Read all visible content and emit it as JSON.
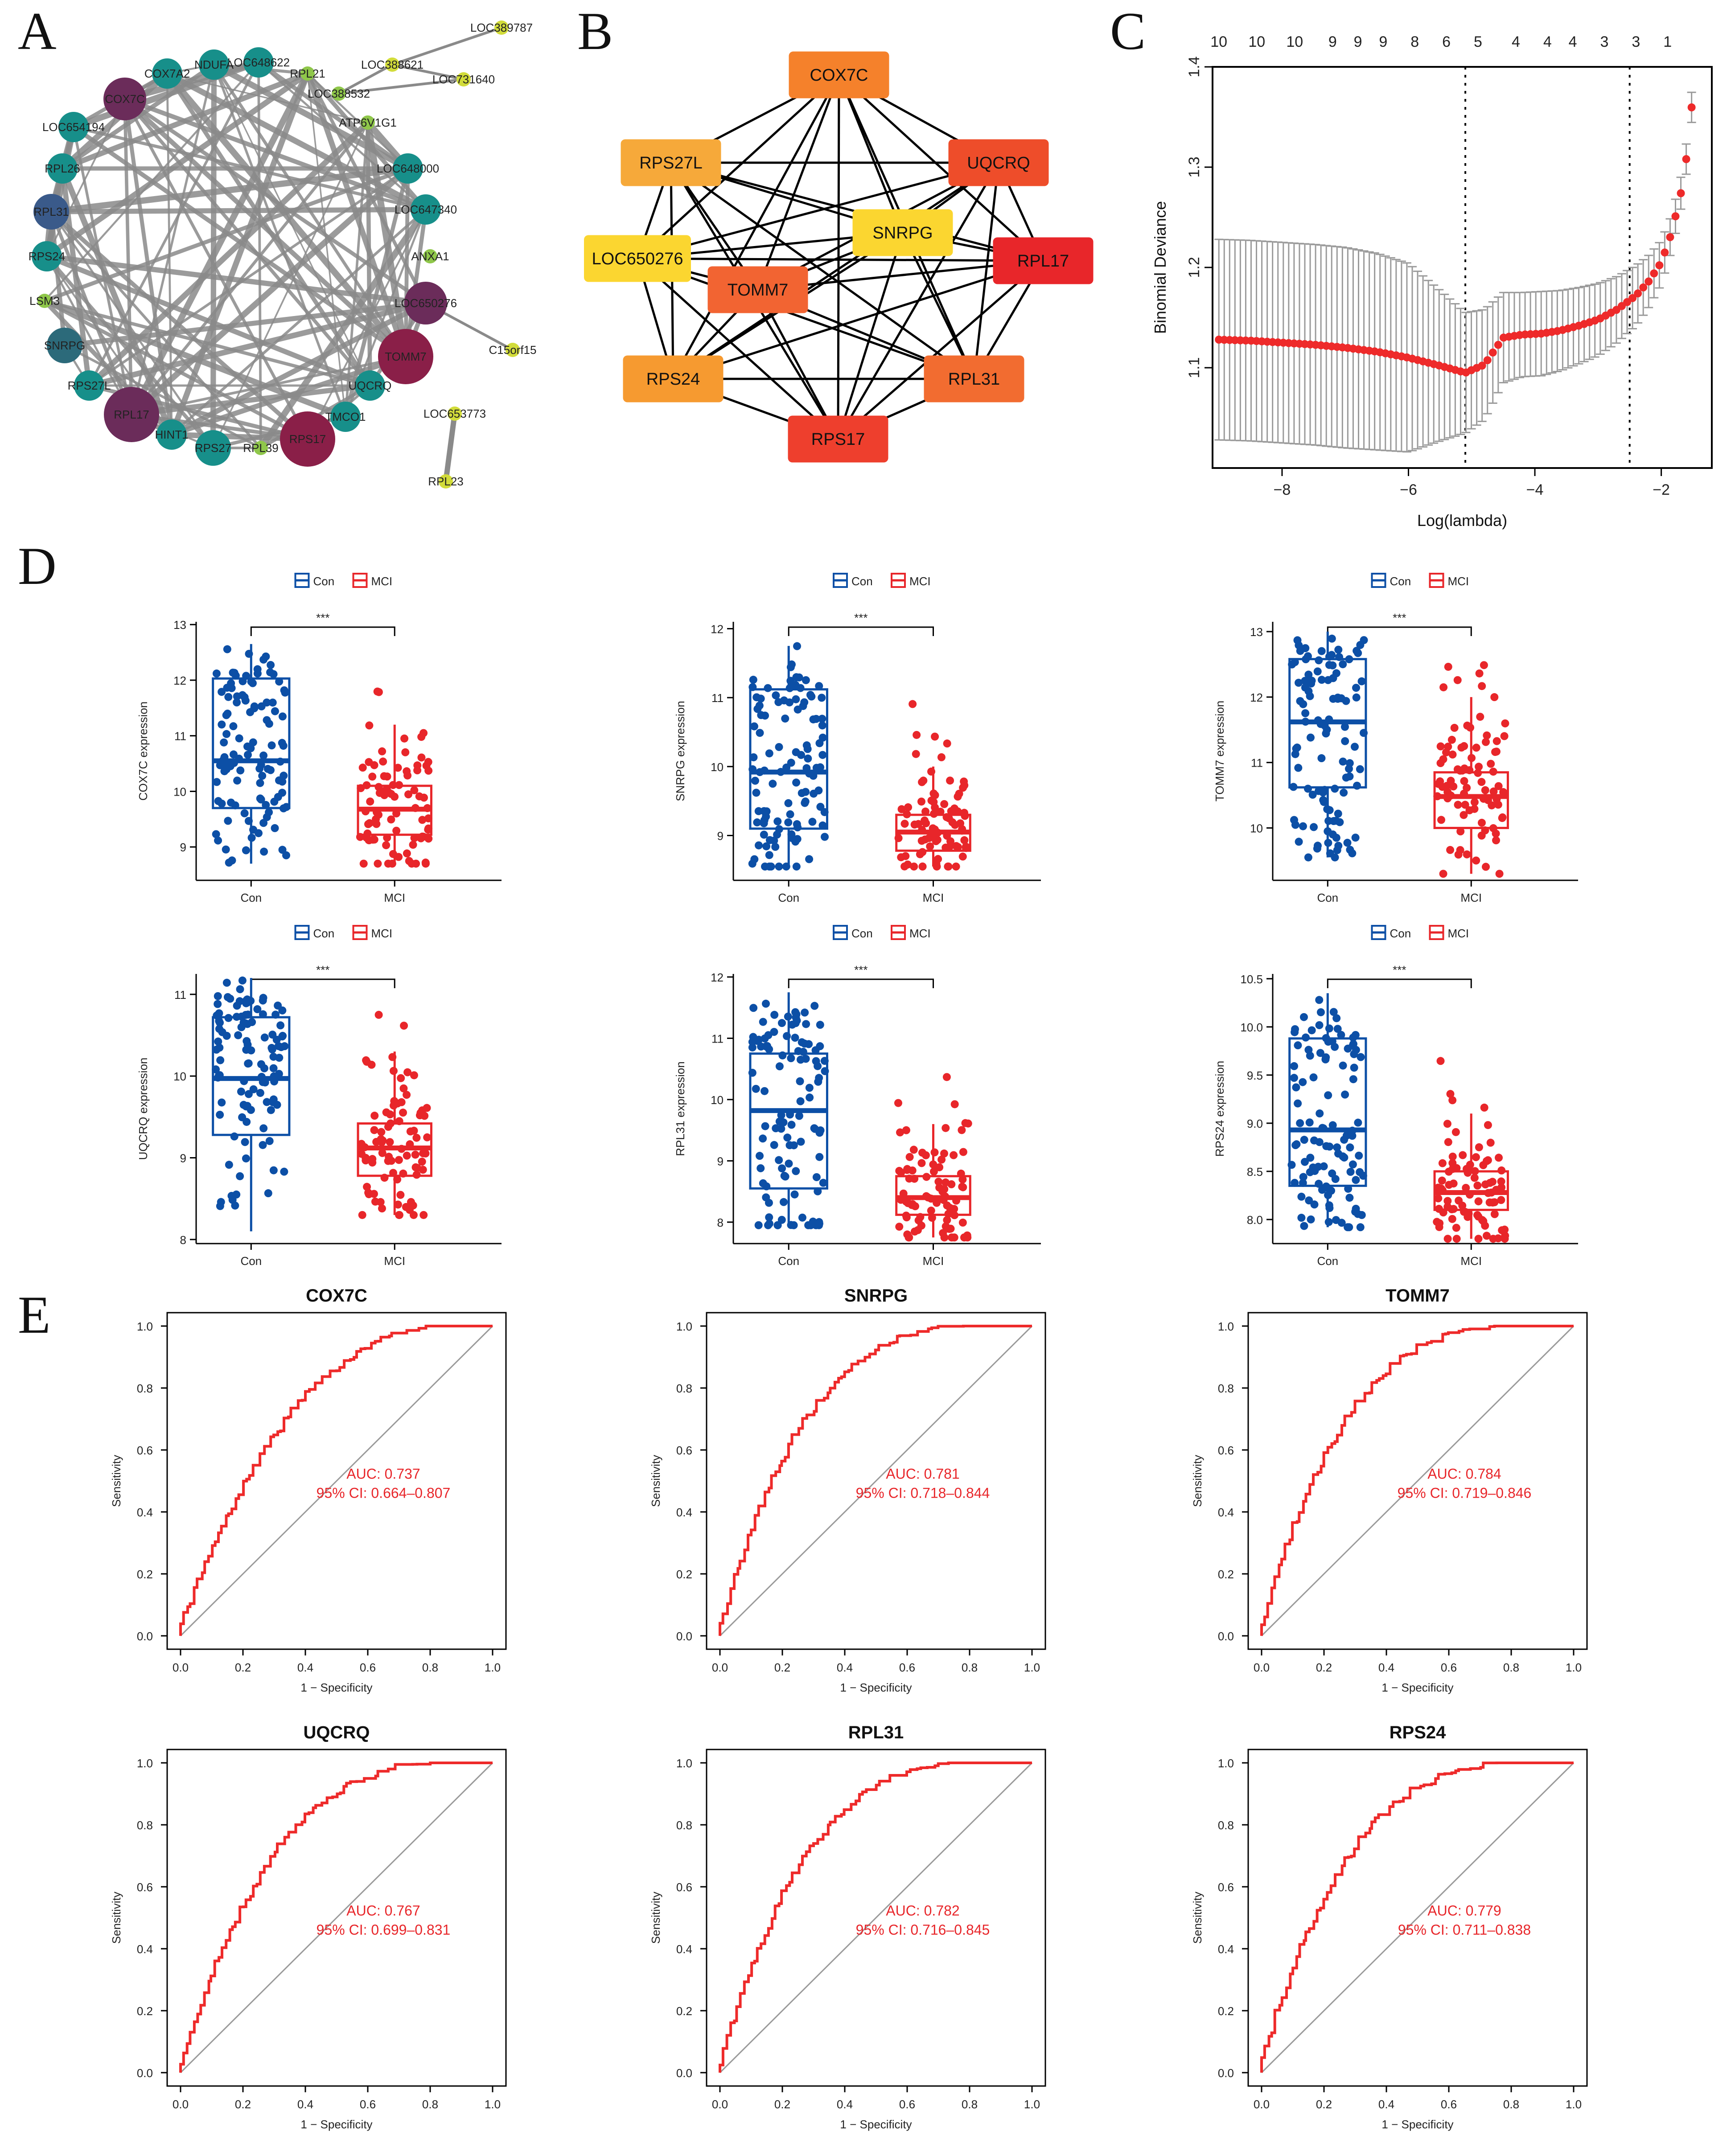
{
  "panel_letters": [
    "A",
    "B",
    "C",
    "D",
    "E"
  ],
  "colors": {
    "con": "#0c4fa6",
    "mci": "#e8262a",
    "roc": "#ee2a2a",
    "edge_gray": "#8a8a8a",
    "node_teal": "#178f8a",
    "node_purple": "#6b2c5a",
    "node_green": "#8fc74a",
    "node_yellow": "#d2dc3a"
  },
  "network_a": {
    "nodes": [
      {
        "id": "LOC388621",
        "label": "LOC388621",
        "color": "#d2dc3a",
        "size": 1
      },
      {
        "id": "LOC389787",
        "label": "LOC389787",
        "color": "#d2dc3a",
        "size": 1
      },
      {
        "id": "LOC731640",
        "label": "LOC731640",
        "color": "#d2dc3a",
        "size": 1
      },
      {
        "id": "LOC388532",
        "label": "LOC388532",
        "color": "#8fc74a",
        "size": 1
      },
      {
        "id": "RPL21",
        "label": "RPL21",
        "color": "#8fc74a",
        "size": 1
      },
      {
        "id": "LOC648622",
        "label": "LOC648622",
        "color": "#178f8a",
        "size": 2
      },
      {
        "id": "NDUFA",
        "label": "NDUFA",
        "color": "#178f8a",
        "size": 2
      },
      {
        "id": "COX7A2",
        "label": "COX7A2",
        "color": "#178f8a",
        "size": 2
      },
      {
        "id": "COX7C",
        "label": "COX7C",
        "color": "#6b2c5a",
        "size": 4
      },
      {
        "id": "ATP6V1G1",
        "label": "ATP6V1G1",
        "color": "#8fc74a",
        "size": 1
      },
      {
        "id": "LOC654194",
        "label": "LOC654194",
        "color": "#178f8a",
        "size": 2
      },
      {
        "id": "LOC648000",
        "label": "LOC648000",
        "color": "#178f8a",
        "size": 2
      },
      {
        "id": "RPL26",
        "label": "RPL26",
        "color": "#178f8a",
        "size": 2
      },
      {
        "id": "LOC647340",
        "label": "LOC647340",
        "color": "#178f8a",
        "size": 2
      },
      {
        "id": "RPL31",
        "label": "RPL31",
        "color": "#3a5a8a",
        "size": 3
      },
      {
        "id": "ANXA1",
        "label": "ANXA1",
        "color": "#8fc74a",
        "size": 1
      },
      {
        "id": "RPS24",
        "label": "RPS24",
        "color": "#178f8a",
        "size": 2
      },
      {
        "id": "LOC650276",
        "label": "LOC650276",
        "color": "#6b2c5a",
        "size": 4
      },
      {
        "id": "LSM3",
        "label": "LSM3",
        "color": "#8fc74a",
        "size": 1
      },
      {
        "id": "C15orf15",
        "label": "C15orf15",
        "color": "#d2dc3a",
        "size": 1
      },
      {
        "id": "SNRPG",
        "label": "SNRPG",
        "color": "#2c6a7a",
        "size": 3
      },
      {
        "id": "TOMM7",
        "label": "TOMM7",
        "color": "#8a1f48",
        "size": 5
      },
      {
        "id": "RPS27L",
        "label": "RPS27L",
        "color": "#178f8a",
        "size": 2
      },
      {
        "id": "UQCRQ",
        "label": "UQCRQ",
        "color": "#178f8a",
        "size": 2
      },
      {
        "id": "RPL17",
        "label": "RPL17",
        "color": "#6b2c5a",
        "size": 5
      },
      {
        "id": "LOC653773",
        "label": "LOC653773",
        "color": "#d2dc3a",
        "size": 1
      },
      {
        "id": "TMCO1",
        "label": "TMCO1",
        "color": "#178f8a",
        "size": 2
      },
      {
        "id": "HINT1",
        "label": "HINT1",
        "color": "#178f8a",
        "size": 2
      },
      {
        "id": "RPS17",
        "label": "RPS17",
        "color": "#8a1f48",
        "size": 5
      },
      {
        "id": "RPS27",
        "label": "RPS27",
        "color": "#178f8a",
        "size": 3
      },
      {
        "id": "RPL39",
        "label": "RPL39",
        "color": "#8fc74a",
        "size": 1
      },
      {
        "id": "RPL23",
        "label": "RPL23",
        "color": "#d2dc3a",
        "size": 1
      }
    ]
  },
  "network_b": {
    "nodes": [
      {
        "id": "COX7C",
        "label": "COX7C",
        "color": "#f5812b"
      },
      {
        "id": "RPS27L",
        "label": "RPS27L",
        "color": "#f6a93a"
      },
      {
        "id": "UQCRQ",
        "label": "UQCRQ",
        "color": "#ee4d2a"
      },
      {
        "id": "SNRPG",
        "label": "SNRPG",
        "color": "#fbd630"
      },
      {
        "id": "LOC650276",
        "label": "LOC650276",
        "color": "#fbd630"
      },
      {
        "id": "RPL17",
        "label": "RPL17",
        "color": "#e8262a"
      },
      {
        "id": "TOMM7",
        "label": "TOMM7",
        "color": "#f26432"
      },
      {
        "id": "RPS24",
        "label": "RPS24",
        "color": "#f69a30"
      },
      {
        "id": "RPL31",
        "label": "RPL31",
        "color": "#f26c30"
      },
      {
        "id": "RPS17",
        "label": "RPS17",
        "color": "#ee3f2d"
      }
    ]
  },
  "chart_data": [
    {
      "id": "C",
      "type": "line",
      "xlabel": "Log(lambda)",
      "ylabel": "Binomial Deviance",
      "xlim": [
        -9.1,
        -1.2
      ],
      "ylim": [
        1.0,
        1.4
      ],
      "xticks": [
        -8,
        -6,
        -4,
        -2
      ],
      "yticks": [
        1.1,
        1.2,
        1.3,
        1.4
      ],
      "top_labels": [
        "10",
        "10",
        "10",
        "9",
        "9",
        "9",
        "8",
        "6",
        "5",
        "4",
        "4",
        "4",
        "3",
        "3",
        "1"
      ],
      "top_label_x": [
        -9.0,
        -8.4,
        -7.8,
        -7.2,
        -6.8,
        -6.4,
        -5.9,
        -5.4,
        -4.9,
        -4.3,
        -3.8,
        -3.4,
        -2.9,
        -2.4,
        -1.9
      ],
      "vlines": [
        -5.1,
        -2.5
      ],
      "points_x": [
        -9.0,
        -8.5,
        -8.0,
        -7.5,
        -7.0,
        -6.5,
        -6.0,
        -5.5,
        -5.1,
        -4.8,
        -4.5,
        -4.2,
        -3.9,
        -3.6,
        -3.3,
        -3.0,
        -2.7,
        -2.4,
        -2.2,
        -2.0,
        -1.85,
        -1.7,
        -1.6,
        -1.5
      ],
      "points_y": [
        1.128,
        1.127,
        1.125,
        1.123,
        1.12,
        1.116,
        1.11,
        1.102,
        1.095,
        1.103,
        1.13,
        1.133,
        1.134,
        1.137,
        1.142,
        1.148,
        1.158,
        1.172,
        1.186,
        1.205,
        1.232,
        1.27,
        1.31,
        1.372
      ],
      "err": [
        0.1,
        0.1,
        0.1,
        0.1,
        0.1,
        0.098,
        0.094,
        0.075,
        0.06,
        0.055,
        0.045,
        0.042,
        0.042,
        0.04,
        0.038,
        0.036,
        0.033,
        0.03,
        0.026,
        0.022,
        0.018,
        0.016,
        0.015,
        0.015
      ]
    },
    {
      "id": "D1",
      "type": "box",
      "gene": "COX7C",
      "ylabel": "COX7C expression",
      "signif": "***",
      "legend": [
        "Con",
        "MCI"
      ],
      "groups": [
        "Con",
        "MCI"
      ],
      "ylim": [
        8.4,
        13.05
      ],
      "yticks": [
        9,
        10,
        11,
        12,
        13
      ],
      "box": [
        {
          "min": 8.7,
          "q1": 9.7,
          "median": 10.55,
          "q3": 12.03,
          "max": 12.65
        },
        {
          "min": 8.7,
          "q1": 9.22,
          "median": 9.68,
          "q3": 10.1,
          "max": 11.2
        }
      ]
    },
    {
      "id": "D2",
      "type": "box",
      "gene": "SNRPG",
      "ylabel": "SNRPG expression",
      "signif": "***",
      "legend": [
        "Con",
        "MCI"
      ],
      "groups": [
        "Con",
        "MCI"
      ],
      "ylim": [
        8.35,
        12.1
      ],
      "yticks": [
        9,
        10,
        11,
        12
      ],
      "box": [
        {
          "min": 8.55,
          "q1": 9.1,
          "median": 9.92,
          "q3": 11.12,
          "max": 11.75
        },
        {
          "min": 8.55,
          "q1": 8.78,
          "median": 9.05,
          "q3": 9.3,
          "max": 10.0
        }
      ]
    },
    {
      "id": "D3",
      "type": "box",
      "gene": "TOMM7",
      "ylabel": "TOMM7 expression",
      "signif": "***",
      "legend": [
        "Con",
        "MCI"
      ],
      "groups": [
        "Con",
        "MCI"
      ],
      "ylim": [
        9.2,
        13.15
      ],
      "yticks": [
        10,
        11,
        12,
        13
      ],
      "box": [
        {
          "min": 9.55,
          "q1": 10.62,
          "median": 11.62,
          "q3": 12.58,
          "max": 13.0
        },
        {
          "min": 9.3,
          "q1": 10.0,
          "median": 10.48,
          "q3": 10.85,
          "max": 12.0
        }
      ]
    },
    {
      "id": "D4",
      "type": "box",
      "gene": "UQCRQ",
      "ylabel": "UQCRQ expression",
      "signif": "***",
      "legend": [
        "Con",
        "MCI"
      ],
      "groups": [
        "Con",
        "MCI"
      ],
      "ylim": [
        7.95,
        11.25
      ],
      "yticks": [
        8,
        9,
        10,
        11
      ],
      "box": [
        {
          "min": 8.1,
          "q1": 9.28,
          "median": 9.97,
          "q3": 10.72,
          "max": 11.2
        },
        {
          "min": 8.3,
          "q1": 8.78,
          "median": 9.12,
          "q3": 9.42,
          "max": 10.3
        }
      ]
    },
    {
      "id": "D5",
      "type": "box",
      "gene": "RPL31",
      "ylabel": "RPL31 expression",
      "signif": "***",
      "legend": [
        "Con",
        "MCI"
      ],
      "groups": [
        "Con",
        "MCI"
      ],
      "ylim": [
        7.65,
        12.05
      ],
      "yticks": [
        8,
        9,
        10,
        11,
        12
      ],
      "box": [
        {
          "min": 7.95,
          "q1": 8.55,
          "median": 9.82,
          "q3": 10.75,
          "max": 11.75
        },
        {
          "min": 7.75,
          "q1": 8.12,
          "median": 8.4,
          "q3": 8.75,
          "max": 9.6
        }
      ]
    },
    {
      "id": "D6",
      "type": "box",
      "gene": "RPS24",
      "ylabel": "RPS24 expression",
      "signif": "***",
      "legend": [
        "Con",
        "MCI"
      ],
      "groups": [
        "Con",
        "MCI"
      ],
      "ylim": [
        7.75,
        10.55
      ],
      "yticks": [
        8.0,
        8.5,
        9.0,
        9.5,
        10.0,
        10.5
      ],
      "box": [
        {
          "min": 7.92,
          "q1": 8.35,
          "median": 8.93,
          "q3": 9.88,
          "max": 10.35
        },
        {
          "min": 7.8,
          "q1": 8.1,
          "median": 8.28,
          "q3": 8.5,
          "max": 9.1
        }
      ]
    },
    {
      "id": "E1",
      "type": "line",
      "title": "COX7C",
      "auc_text": "AUC: 0.737",
      "ci_text": "95% CI: 0.664–0.807",
      "auc": 0.737,
      "xlabel": "1 − Specificity",
      "ylabel": "Sensitivity",
      "xlim": [
        0,
        1
      ],
      "ylim": [
        0,
        1
      ],
      "xticks": [
        0.0,
        0.2,
        0.4,
        0.6,
        0.8,
        1.0
      ],
      "yticks": [
        0.0,
        0.2,
        0.4,
        0.6,
        0.8,
        1.0
      ]
    },
    {
      "id": "E2",
      "type": "line",
      "title": "SNRPG",
      "auc_text": "AUC: 0.781",
      "ci_text": "95% CI: 0.718–0.844",
      "auc": 0.781,
      "xlabel": "1 − Specificity",
      "ylabel": "Sensitivity",
      "xlim": [
        0,
        1
      ],
      "ylim": [
        0,
        1
      ],
      "xticks": [
        0.0,
        0.2,
        0.4,
        0.6,
        0.8,
        1.0
      ],
      "yticks": [
        0.0,
        0.2,
        0.4,
        0.6,
        0.8,
        1.0
      ]
    },
    {
      "id": "E3",
      "type": "line",
      "title": "TOMM7",
      "auc_text": "AUC: 0.784",
      "ci_text": "95% CI: 0.719–0.846",
      "auc": 0.784,
      "xlabel": "1 − Specificity",
      "ylabel": "Sensitivity",
      "xlim": [
        0,
        1
      ],
      "ylim": [
        0,
        1
      ],
      "xticks": [
        0.0,
        0.2,
        0.4,
        0.6,
        0.8,
        1.0
      ],
      "yticks": [
        0.0,
        0.2,
        0.4,
        0.6,
        0.8,
        1.0
      ]
    },
    {
      "id": "E4",
      "type": "line",
      "title": "UQCRQ",
      "auc_text": "AUC: 0.767",
      "ci_text": "95% CI: 0.699–0.831",
      "auc": 0.767,
      "xlabel": "1 − Specificity",
      "ylabel": "Sensitivity",
      "xlim": [
        0,
        1
      ],
      "ylim": [
        0,
        1
      ],
      "xticks": [
        0.0,
        0.2,
        0.4,
        0.6,
        0.8,
        1.0
      ],
      "yticks": [
        0.0,
        0.2,
        0.4,
        0.6,
        0.8,
        1.0
      ]
    },
    {
      "id": "E5",
      "type": "line",
      "title": "RPL31",
      "auc_text": "AUC: 0.782",
      "ci_text": "95% CI: 0.716–0.845",
      "auc": 0.782,
      "xlabel": "1 − Specificity",
      "ylabel": "Sensitivity",
      "xlim": [
        0,
        1
      ],
      "ylim": [
        0,
        1
      ],
      "xticks": [
        0.0,
        0.2,
        0.4,
        0.6,
        0.8,
        1.0
      ],
      "yticks": [
        0.0,
        0.2,
        0.4,
        0.6,
        0.8,
        1.0
      ]
    },
    {
      "id": "E6",
      "type": "line",
      "title": "RPS24",
      "auc_text": "AUC: 0.779",
      "ci_text": "95% CI: 0.711–0.838",
      "auc": 0.779,
      "xlabel": "1 − Specificity",
      "ylabel": "Sensitivity",
      "xlim": [
        0,
        1
      ],
      "ylim": [
        0,
        1
      ],
      "xticks": [
        0.0,
        0.2,
        0.4,
        0.6,
        0.8,
        1.0
      ],
      "yticks": [
        0.0,
        0.2,
        0.4,
        0.6,
        0.8,
        1.0
      ]
    }
  ]
}
